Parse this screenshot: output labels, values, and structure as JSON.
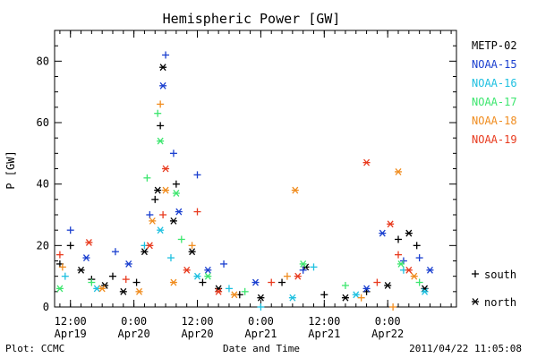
{
  "chart_data": {
    "type": "scatter",
    "title": "Hemispheric Power [GW]",
    "ylabel": "P [GW]",
    "xlabel": "Date and Time",
    "ylim": [
      0,
      90
    ],
    "xlim": [
      "2011-04-19T09:00",
      "2011-04-22T13:00"
    ],
    "y_ticks": [
      0,
      20,
      40,
      60,
      80
    ],
    "x_ticks": [
      {
        "t": "2011-04-19T12:00",
        "line1": "12:00",
        "line2": "Apr19"
      },
      {
        "t": "2011-04-20T00:00",
        "line1": "0:00",
        "line2": "Apr20"
      },
      {
        "t": "2011-04-20T12:00",
        "line1": "12:00",
        "line2": "Apr20"
      },
      {
        "t": "2011-04-21T00:00",
        "line1": "0:00",
        "line2": "Apr21"
      },
      {
        "t": "2011-04-21T12:00",
        "line1": "12:00",
        "line2": "Apr21"
      },
      {
        "t": "2011-04-22T00:00",
        "line1": "0:00",
        "line2": "Apr22"
      }
    ],
    "legend_position": "right",
    "marker_legend": [
      {
        "symbol": "+",
        "label": "south"
      },
      {
        "symbol": "*",
        "label": "north"
      }
    ],
    "series": [
      {
        "name": "METP-02",
        "color": "#000000",
        "points": [
          {
            "t": "2011-04-19T10:00",
            "y": 14,
            "m": "+"
          },
          {
            "t": "2011-04-19T12:00",
            "y": 20,
            "m": "+"
          },
          {
            "t": "2011-04-19T14:00",
            "y": 12,
            "m": "*"
          },
          {
            "t": "2011-04-19T16:00",
            "y": 9,
            "m": "+"
          },
          {
            "t": "2011-04-19T18:30",
            "y": 7,
            "m": "*"
          },
          {
            "t": "2011-04-19T20:00",
            "y": 10,
            "m": "+"
          },
          {
            "t": "2011-04-19T22:00",
            "y": 5,
            "m": "*"
          },
          {
            "t": "2011-04-20T00:30",
            "y": 8,
            "m": "+"
          },
          {
            "t": "2011-04-20T02:00",
            "y": 18,
            "m": "*"
          },
          {
            "t": "2011-04-20T04:00",
            "y": 35,
            "m": "+"
          },
          {
            "t": "2011-04-20T04:30",
            "y": 38,
            "m": "*"
          },
          {
            "t": "2011-04-20T05:00",
            "y": 59,
            "m": "+"
          },
          {
            "t": "2011-04-20T05:30",
            "y": 78,
            "m": "*"
          },
          {
            "t": "2011-04-20T08:00",
            "y": 40,
            "m": "+"
          },
          {
            "t": "2011-04-20T07:30",
            "y": 28,
            "m": "*"
          },
          {
            "t": "2011-04-20T11:00",
            "y": 18,
            "m": "*"
          },
          {
            "t": "2011-04-20T13:00",
            "y": 8,
            "m": "+"
          },
          {
            "t": "2011-04-20T16:00",
            "y": 6,
            "m": "*"
          },
          {
            "t": "2011-04-20T20:00",
            "y": 4,
            "m": "+"
          },
          {
            "t": "2011-04-21T00:00",
            "y": 3,
            "m": "*"
          },
          {
            "t": "2011-04-21T04:00",
            "y": 8,
            "m": "+"
          },
          {
            "t": "2011-04-21T08:30",
            "y": 13,
            "m": "*"
          },
          {
            "t": "2011-04-21T12:00",
            "y": 4,
            "m": "+"
          },
          {
            "t": "2011-04-21T16:00",
            "y": 3,
            "m": "*"
          },
          {
            "t": "2011-04-21T20:00",
            "y": 5,
            "m": "+"
          },
          {
            "t": "2011-04-22T00:00",
            "y": 7,
            "m": "*"
          },
          {
            "t": "2011-04-22T02:00",
            "y": 22,
            "m": "+"
          },
          {
            "t": "2011-04-22T04:00",
            "y": 24,
            "m": "*"
          },
          {
            "t": "2011-04-22T05:30",
            "y": 20,
            "m": "+"
          },
          {
            "t": "2011-04-22T07:00",
            "y": 6,
            "m": "*"
          }
        ]
      },
      {
        "name": "NOAA-15",
        "color": "#1a3fcf",
        "points": [
          {
            "t": "2011-04-19T12:00",
            "y": 25,
            "m": "+"
          },
          {
            "t": "2011-04-19T15:00",
            "y": 16,
            "m": "*"
          },
          {
            "t": "2011-04-19T20:30",
            "y": 18,
            "m": "+"
          },
          {
            "t": "2011-04-19T23:00",
            "y": 14,
            "m": "*"
          },
          {
            "t": "2011-04-20T03:00",
            "y": 30,
            "m": "+"
          },
          {
            "t": "2011-04-20T05:30",
            "y": 72,
            "m": "*"
          },
          {
            "t": "2011-04-20T06:00",
            "y": 82,
            "m": "+"
          },
          {
            "t": "2011-04-20T07:30",
            "y": 50,
            "m": "+"
          },
          {
            "t": "2011-04-20T08:30",
            "y": 31,
            "m": "*"
          },
          {
            "t": "2011-04-20T12:00",
            "y": 43,
            "m": "+"
          },
          {
            "t": "2011-04-20T14:00",
            "y": 12,
            "m": "*"
          },
          {
            "t": "2011-04-20T17:00",
            "y": 14,
            "m": "+"
          },
          {
            "t": "2011-04-20T23:00",
            "y": 8,
            "m": "*"
          },
          {
            "t": "2011-04-21T08:00",
            "y": 12,
            "m": "+"
          },
          {
            "t": "2011-04-21T20:00",
            "y": 6,
            "m": "*"
          },
          {
            "t": "2011-04-21T23:00",
            "y": 24,
            "m": "*"
          },
          {
            "t": "2011-04-22T03:00",
            "y": 15,
            "m": "+"
          },
          {
            "t": "2011-04-22T06:00",
            "y": 16,
            "m": "+"
          },
          {
            "t": "2011-04-22T08:00",
            "y": 12,
            "m": "*"
          }
        ]
      },
      {
        "name": "NOAA-16",
        "color": "#1ec0e0",
        "points": [
          {
            "t": "2011-04-19T11:00",
            "y": 10,
            "m": "+"
          },
          {
            "t": "2011-04-19T17:00",
            "y": 6,
            "m": "*"
          },
          {
            "t": "2011-04-20T02:00",
            "y": 20,
            "m": "+"
          },
          {
            "t": "2011-04-20T05:00",
            "y": 25,
            "m": "*"
          },
          {
            "t": "2011-04-20T07:00",
            "y": 16,
            "m": "+"
          },
          {
            "t": "2011-04-20T12:00",
            "y": 10,
            "m": "*"
          },
          {
            "t": "2011-04-20T18:00",
            "y": 6,
            "m": "+"
          },
          {
            "t": "2011-04-21T00:00",
            "y": 0,
            "m": "+"
          },
          {
            "t": "2011-04-21T06:00",
            "y": 3,
            "m": "*"
          },
          {
            "t": "2011-04-21T10:00",
            "y": 13,
            "m": "+"
          },
          {
            "t": "2011-04-21T18:00",
            "y": 4,
            "m": "*"
          },
          {
            "t": "2011-04-22T03:00",
            "y": 12,
            "m": "+"
          },
          {
            "t": "2011-04-22T07:00",
            "y": 5,
            "m": "*"
          }
        ]
      },
      {
        "name": "NOAA-17",
        "color": "#3ce66e",
        "points": [
          {
            "t": "2011-04-19T10:00",
            "y": 6,
            "m": "*"
          },
          {
            "t": "2011-04-19T16:00",
            "y": 8,
            "m": "+"
          },
          {
            "t": "2011-04-20T02:30",
            "y": 42,
            "m": "+"
          },
          {
            "t": "2011-04-20T04:30",
            "y": 63,
            "m": "+"
          },
          {
            "t": "2011-04-20T05:00",
            "y": 54,
            "m": "*"
          },
          {
            "t": "2011-04-20T08:00",
            "y": 37,
            "m": "*"
          },
          {
            "t": "2011-04-20T09:00",
            "y": 22,
            "m": "+"
          },
          {
            "t": "2011-04-20T14:00",
            "y": 10,
            "m": "*"
          },
          {
            "t": "2011-04-20T21:00",
            "y": 5,
            "m": "+"
          },
          {
            "t": "2011-04-21T08:00",
            "y": 14,
            "m": "*"
          },
          {
            "t": "2011-04-21T16:00",
            "y": 7,
            "m": "+"
          },
          {
            "t": "2011-04-22T02:30",
            "y": 14,
            "m": "*"
          },
          {
            "t": "2011-04-22T06:00",
            "y": 8,
            "m": "+"
          }
        ]
      },
      {
        "name": "NOAA-18",
        "color": "#f08c1e",
        "points": [
          {
            "t": "2011-04-19T10:30",
            "y": 13,
            "m": "+"
          },
          {
            "t": "2011-04-19T18:00",
            "y": 6,
            "m": "*"
          },
          {
            "t": "2011-04-20T01:00",
            "y": 5,
            "m": "*"
          },
          {
            "t": "2011-04-20T03:30",
            "y": 28,
            "m": "*"
          },
          {
            "t": "2011-04-20T05:00",
            "y": 66,
            "m": "+"
          },
          {
            "t": "2011-04-20T06:00",
            "y": 38,
            "m": "*"
          },
          {
            "t": "2011-04-20T07:30",
            "y": 8,
            "m": "*"
          },
          {
            "t": "2011-04-20T11:00",
            "y": 20,
            "m": "+"
          },
          {
            "t": "2011-04-20T19:00",
            "y": 4,
            "m": "*"
          },
          {
            "t": "2011-04-21T05:00",
            "y": 10,
            "m": "+"
          },
          {
            "t": "2011-04-21T06:30",
            "y": 38,
            "m": "*"
          },
          {
            "t": "2011-04-21T19:00",
            "y": 3,
            "m": "+"
          },
          {
            "t": "2011-04-22T01:00",
            "y": 0,
            "m": "+"
          },
          {
            "t": "2011-04-22T02:00",
            "y": 44,
            "m": "*"
          },
          {
            "t": "2011-04-22T05:00",
            "y": 10,
            "m": "*"
          }
        ]
      },
      {
        "name": "NOAA-19",
        "color": "#e83a1e",
        "points": [
          {
            "t": "2011-04-19T10:00",
            "y": 17,
            "m": "+"
          },
          {
            "t": "2011-04-19T15:30",
            "y": 21,
            "m": "*"
          },
          {
            "t": "2011-04-19T22:30",
            "y": 9,
            "m": "+"
          },
          {
            "t": "2011-04-20T03:00",
            "y": 20,
            "m": "*"
          },
          {
            "t": "2011-04-20T05:30",
            "y": 30,
            "m": "+"
          },
          {
            "t": "2011-04-20T06:00",
            "y": 45,
            "m": "*"
          },
          {
            "t": "2011-04-20T10:00",
            "y": 12,
            "m": "*"
          },
          {
            "t": "2011-04-20T12:00",
            "y": 31,
            "m": "+"
          },
          {
            "t": "2011-04-20T16:00",
            "y": 5,
            "m": "*"
          },
          {
            "t": "2011-04-21T02:00",
            "y": 8,
            "m": "+"
          },
          {
            "t": "2011-04-21T07:00",
            "y": 10,
            "m": "*"
          },
          {
            "t": "2011-04-21T20:00",
            "y": 47,
            "m": "*"
          },
          {
            "t": "2011-04-21T22:00",
            "y": 8,
            "m": "+"
          },
          {
            "t": "2011-04-22T00:30",
            "y": 27,
            "m": "*"
          },
          {
            "t": "2011-04-22T02:00",
            "y": 17,
            "m": "+"
          },
          {
            "t": "2011-04-22T04:00",
            "y": 12,
            "m": "*"
          }
        ]
      }
    ]
  },
  "footer": {
    "source": "Plot: CCMC",
    "timestamp": "2011/04/22 11:05:08"
  }
}
